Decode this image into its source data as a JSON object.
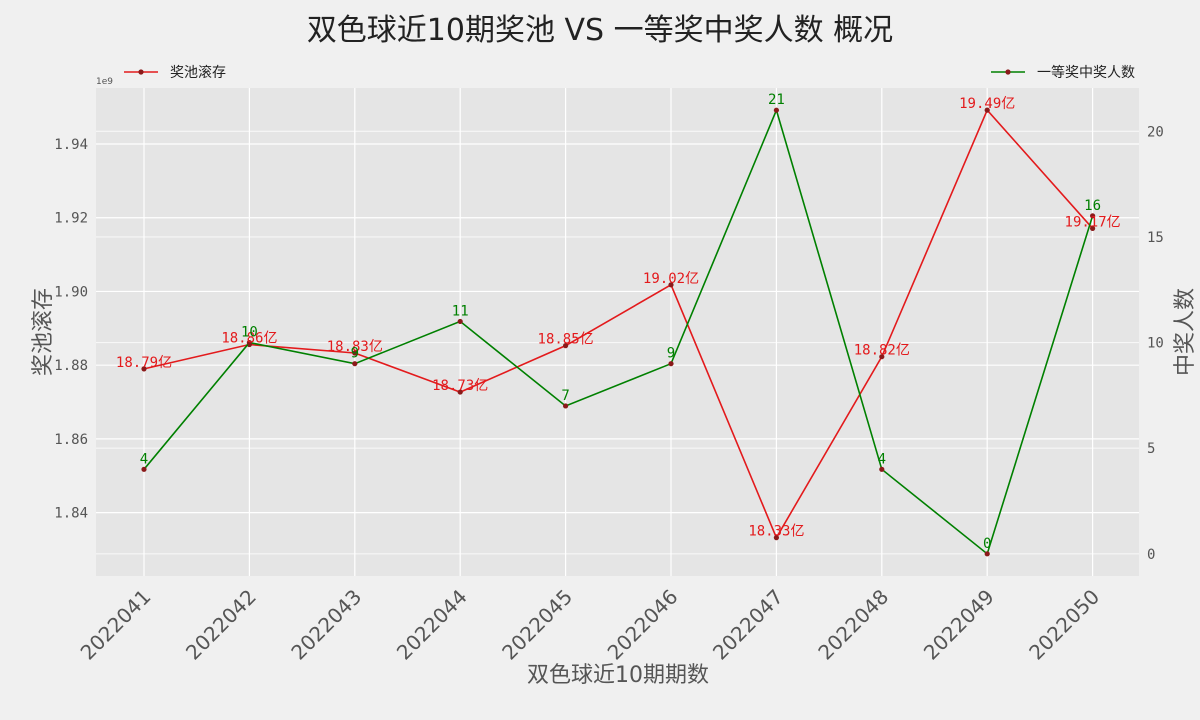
{
  "chart_data": {
    "type": "line",
    "title": "双色球近10期奖池 VS 一等奖中奖人数 概况",
    "xlabel": "双色球近10期期数",
    "ylabel_left": "奖池滚存",
    "ylabel_right": "中奖人数",
    "left_axis_multiplier": "1e9",
    "categories": [
      "2022041",
      "2022042",
      "2022043",
      "2022044",
      "2022045",
      "2022046",
      "2022047",
      "2022048",
      "2022049",
      "2022050"
    ],
    "ylim_left": [
      1.8228,
      1.9552
    ],
    "yticks_left": [
      "1.84",
      "1.86",
      "1.88",
      "1.90",
      "1.92",
      "1.94"
    ],
    "ylim_right": [
      -1.05,
      22.05
    ],
    "yticks_right": [
      "0",
      "5",
      "10",
      "15",
      "20"
    ],
    "grid": true,
    "series": [
      {
        "name": "奖池滚存",
        "axis": "left",
        "color": "#e31a1c",
        "values": [
          1.879,
          1.8856,
          1.8833,
          1.8727,
          1.8853,
          1.9018,
          1.8332,
          1.8823,
          1.9492,
          1.9171
        ],
        "labels": [
          "18.79亿",
          "18.86亿",
          "18.83亿",
          "18.73亿",
          "18.85亿",
          "19.02亿",
          "18.33亿",
          "18.82亿",
          "19.49亿",
          "19.17亿"
        ]
      },
      {
        "name": "一等奖中奖人数",
        "axis": "right",
        "color": "#008000",
        "values": [
          4,
          10,
          9,
          11,
          7,
          9,
          21,
          4,
          0,
          16
        ],
        "labels": [
          "4",
          "10",
          "9",
          "11",
          "7",
          "9",
          "21",
          "4",
          "0",
          "16"
        ]
      }
    ],
    "legend": [
      {
        "label": "奖池滚存",
        "position": "top-left"
      },
      {
        "label": "一等奖中奖人数",
        "position": "top-right"
      }
    ]
  }
}
